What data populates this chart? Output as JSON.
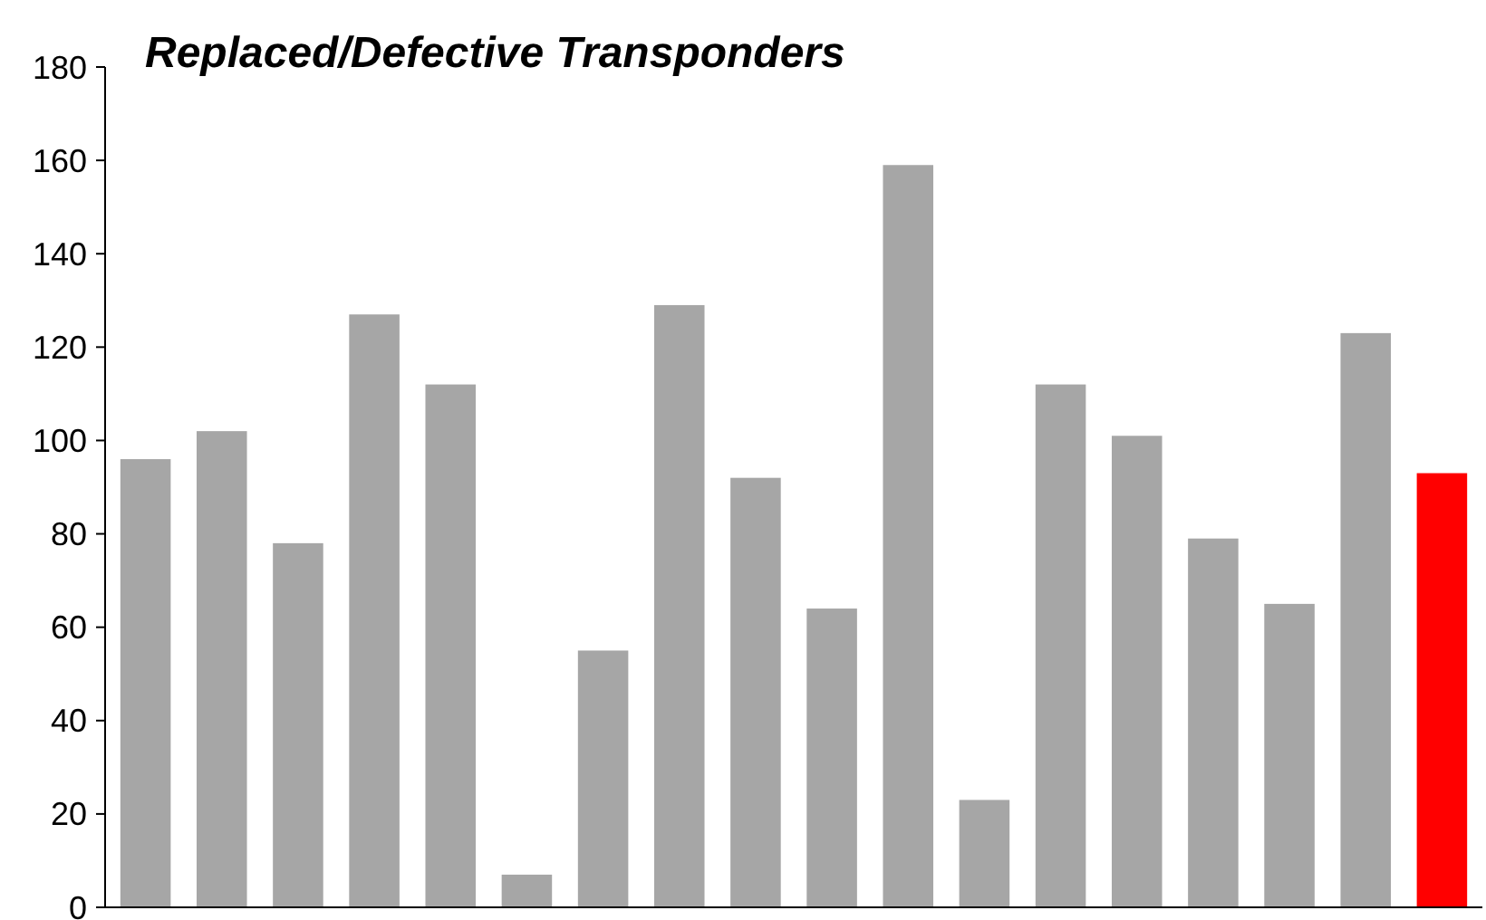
{
  "chart_data": {
    "type": "bar",
    "title": "Replaced/Defective Transponders",
    "categories": [
      null,
      null,
      null,
      null,
      null,
      null,
      null,
      null,
      null,
      null,
      null,
      null,
      null,
      null,
      null,
      null,
      null,
      null
    ],
    "values": [
      96,
      102,
      78,
      127,
      112,
      7,
      55,
      129,
      92,
      64,
      159,
      23,
      112,
      101,
      79,
      65,
      123,
      93
    ],
    "colors": [
      "#a6a6a6",
      "#a6a6a6",
      "#a6a6a6",
      "#a6a6a6",
      "#a6a6a6",
      "#a6a6a6",
      "#a6a6a6",
      "#a6a6a6",
      "#a6a6a6",
      "#a6a6a6",
      "#a6a6a6",
      "#a6a6a6",
      "#a6a6a6",
      "#a6a6a6",
      "#a6a6a6",
      "#a6a6a6",
      "#a6a6a6",
      "#ff0000"
    ],
    "ylim": [
      0,
      180
    ],
    "yticks": [
      0,
      20,
      40,
      60,
      80,
      100,
      120,
      140,
      160,
      180
    ],
    "grid": false
  }
}
